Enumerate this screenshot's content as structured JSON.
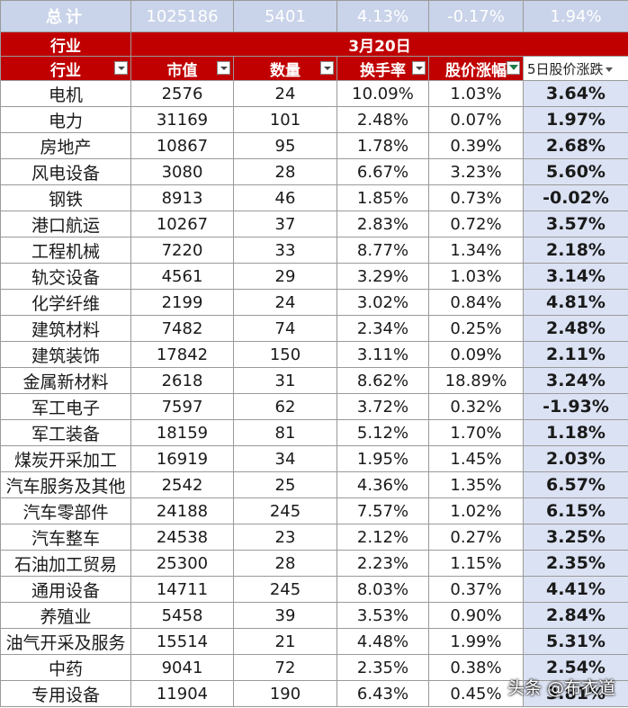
{
  "total": {
    "label": "总计",
    "market_value": "1025186",
    "count": "5401",
    "turnover": "4.13%",
    "change": "-0.17%",
    "change_5d": "1.94%"
  },
  "date_row": {
    "label": "行业",
    "date": "3月20日"
  },
  "columns": [
    "行业",
    "市值",
    "数量",
    "换手率",
    "股价涨幅",
    "5日股价涨跌"
  ],
  "rows": [
    [
      "电机",
      "2576",
      "24",
      "10.09%",
      "1.03%",
      "3.64%"
    ],
    [
      "电力",
      "31169",
      "101",
      "2.48%",
      "0.07%",
      "1.97%"
    ],
    [
      "房地产",
      "10867",
      "95",
      "1.78%",
      "0.39%",
      "2.68%"
    ],
    [
      "风电设备",
      "3080",
      "28",
      "6.67%",
      "3.23%",
      "5.60%"
    ],
    [
      "钢铁",
      "8913",
      "46",
      "1.85%",
      "0.73%",
      "-0.02%"
    ],
    [
      "港口航运",
      "10267",
      "37",
      "2.83%",
      "0.72%",
      "3.57%"
    ],
    [
      "工程机械",
      "7220",
      "33",
      "8.77%",
      "1.34%",
      "2.18%"
    ],
    [
      "轨交设备",
      "4561",
      "29",
      "3.29%",
      "1.03%",
      "3.14%"
    ],
    [
      "化学纤维",
      "2199",
      "24",
      "3.02%",
      "0.84%",
      "4.81%"
    ],
    [
      "建筑材料",
      "7482",
      "74",
      "2.34%",
      "0.25%",
      "2.48%"
    ],
    [
      "建筑装饰",
      "17842",
      "150",
      "3.11%",
      "0.09%",
      "2.11%"
    ],
    [
      "金属新材料",
      "2618",
      "31",
      "8.62%",
      "18.89%",
      "3.24%"
    ],
    [
      "军工电子",
      "7597",
      "62",
      "3.72%",
      "0.32%",
      "-1.93%"
    ],
    [
      "军工装备",
      "18159",
      "81",
      "5.12%",
      "1.70%",
      "1.18%"
    ],
    [
      "煤炭开采加工",
      "16919",
      "34",
      "1.95%",
      "1.45%",
      "2.03%"
    ],
    [
      "汽车服务及其他",
      "2542",
      "25",
      "4.36%",
      "1.35%",
      "6.57%"
    ],
    [
      "汽车零部件",
      "24188",
      "245",
      "7.57%",
      "1.02%",
      "6.15%"
    ],
    [
      "汽车整车",
      "24538",
      "23",
      "2.12%",
      "0.27%",
      "3.25%"
    ],
    [
      "石油加工贸易",
      "25300",
      "28",
      "2.23%",
      "1.15%",
      "2.35%"
    ],
    [
      "通用设备",
      "14711",
      "245",
      "8.03%",
      "0.37%",
      "4.41%"
    ],
    [
      "养殖业",
      "5458",
      "39",
      "3.53%",
      "0.90%",
      "2.84%"
    ],
    [
      "油气开采及服务",
      "15514",
      "21",
      "4.48%",
      "1.99%",
      "5.31%"
    ],
    [
      "中药",
      "9041",
      "72",
      "2.35%",
      "0.38%",
      "2.54%"
    ],
    [
      "专用设备",
      "11904",
      "190",
      "6.43%",
      "0.45%",
      "3.81%"
    ]
  ],
  "watermark": "头条 @布衣道"
}
